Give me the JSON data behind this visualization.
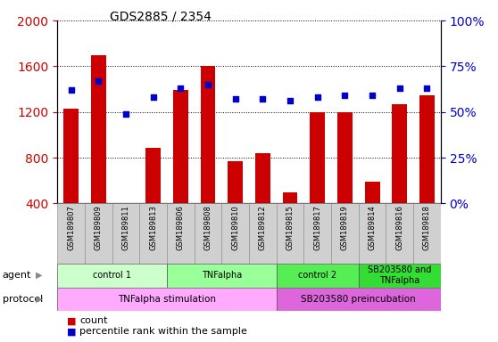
{
  "title": "GDS2885 / 2354",
  "samples": [
    "GSM189807",
    "GSM189809",
    "GSM189811",
    "GSM189813",
    "GSM189806",
    "GSM189808",
    "GSM189810",
    "GSM189812",
    "GSM189815",
    "GSM189817",
    "GSM189819",
    "GSM189814",
    "GSM189816",
    "GSM189818"
  ],
  "counts": [
    1230,
    1700,
    390,
    890,
    1390,
    1600,
    770,
    840,
    500,
    1200,
    1200,
    590,
    1270,
    1350
  ],
  "percentiles": [
    62,
    67,
    49,
    58,
    63,
    65,
    57,
    57,
    56,
    58,
    59,
    59,
    63,
    63
  ],
  "ylim_left": [
    400,
    2000
  ],
  "ylim_right": [
    0,
    100
  ],
  "yticks_left": [
    400,
    800,
    1200,
    1600,
    2000
  ],
  "yticks_right": [
    0,
    25,
    50,
    75,
    100
  ],
  "agent_groups": [
    {
      "label": "control 1",
      "start": 0,
      "end": 4,
      "color": "#ccffcc"
    },
    {
      "label": "TNFalpha",
      "start": 4,
      "end": 8,
      "color": "#99ff99"
    },
    {
      "label": "control 2",
      "start": 8,
      "end": 11,
      "color": "#55ee55"
    },
    {
      "label": "SB203580 and\nTNFalpha",
      "start": 11,
      "end": 14,
      "color": "#33dd33"
    }
  ],
  "protocol_groups": [
    {
      "label": "TNFalpha stimulation",
      "start": 0,
      "end": 8,
      "color": "#ffaaff"
    },
    {
      "label": "SB203580 preincubation",
      "start": 8,
      "end": 14,
      "color": "#dd66dd"
    }
  ],
  "bar_color": "#cc0000",
  "dot_color": "#0000cc",
  "left_label_color": "#cc0000",
  "right_label_color": "#0000cc"
}
